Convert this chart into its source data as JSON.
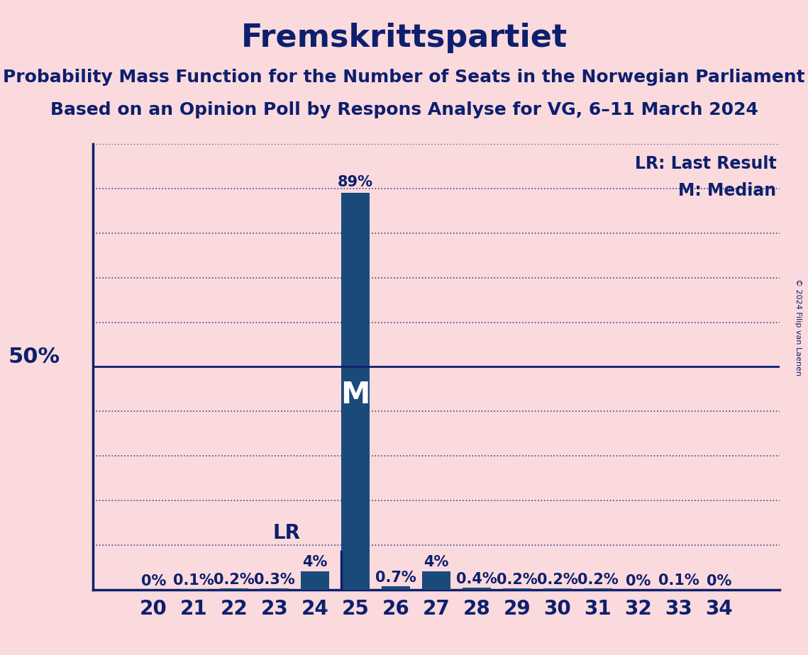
{
  "title": "Fremskrittspartiet",
  "subtitle1": "Probability Mass Function for the Number of Seats in the Norwegian Parliament",
  "subtitle2": "Based on an Opinion Poll by Respons Analyse for VG, 6–11 March 2024",
  "copyright": "© 2024 Filip van Laenen",
  "seats": [
    20,
    21,
    22,
    23,
    24,
    25,
    26,
    27,
    28,
    29,
    30,
    31,
    32,
    33,
    34
  ],
  "probabilities": [
    0.0,
    0.1,
    0.2,
    0.3,
    4.0,
    89.0,
    0.7,
    4.0,
    0.4,
    0.2,
    0.2,
    0.2,
    0.0,
    0.1,
    0.0
  ],
  "prob_labels": [
    "0%",
    "0.1%",
    "0.2%",
    "0.3%",
    "4%",
    "89%",
    "0.7%",
    "4%",
    "0.4%",
    "0.2%",
    "0.2%",
    "0.2%",
    "0%",
    "0.1%",
    "0%"
  ],
  "median_seat": 25,
  "lr_seat": 25,
  "bar_color": "#1a4a7a",
  "background_color": "#fadadd",
  "text_color": "#0d1f6e",
  "ylim": [
    0,
    100
  ],
  "fifty_pct_line": 50,
  "title_fontsize": 32,
  "subtitle_fontsize": 18,
  "axis_label_fontsize": 20,
  "bar_label_fontsize": 15,
  "legend_fontsize": 17,
  "fifty_label_fontsize": 22
}
